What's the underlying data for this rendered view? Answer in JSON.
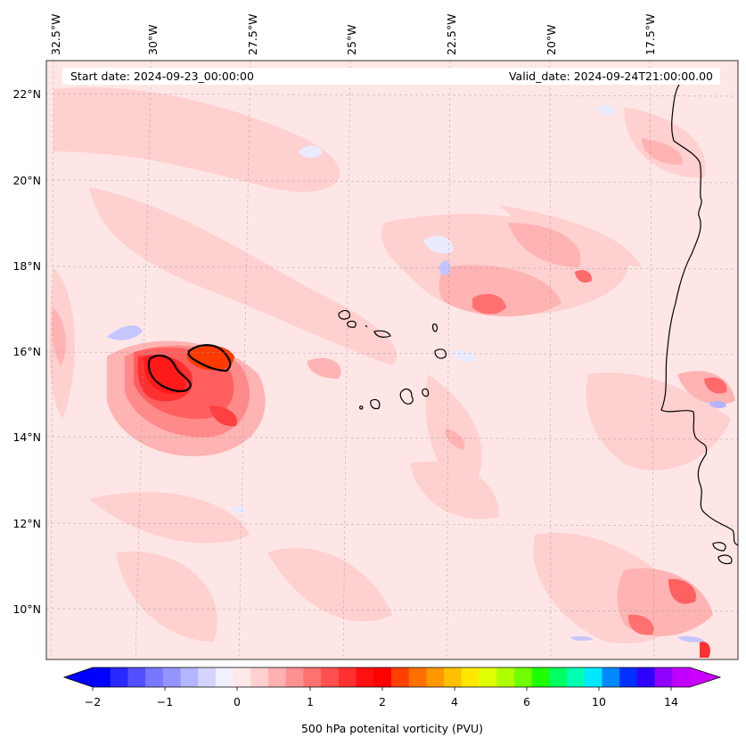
{
  "info": {
    "start_date": "Start date: 2024-09-23_00:00:00",
    "valid_date": "Valid_date: 2024-09-24T21:00:00.00"
  },
  "axes": {
    "lon_labels": [
      "32.5°W",
      "30°W",
      "27.5°W",
      "25°W",
      "22.5°W",
      "20°W",
      "17.5°W"
    ],
    "lat_labels": [
      "22°N",
      "20°N",
      "18°N",
      "16°N",
      "14°N",
      "12°N",
      "10°N"
    ]
  },
  "colorbar": {
    "label": "500 hPa potenital vorticity (PVU)",
    "tick_labels": [
      "−2",
      "−1",
      "0",
      "1",
      "2",
      "4",
      "6",
      "10",
      "14"
    ],
    "colors": [
      "#0000ff",
      "#2828ff",
      "#5050ff",
      "#7878ff",
      "#9494ff",
      "#b4b4ff",
      "#d4d4ff",
      "#f0f0ff",
      "#ffe8e8",
      "#ffd0d0",
      "#ffb0b0",
      "#ff9090",
      "#ff7070",
      "#ff5050",
      "#ff3030",
      "#ff1010",
      "#ff0000",
      "#ff4000",
      "#ff7000",
      "#ff9800",
      "#ffc000",
      "#ffe800",
      "#e0ff00",
      "#b0ff00",
      "#70ff00",
      "#20ff00",
      "#00ff60",
      "#00ffb0",
      "#00e8ff",
      "#0088ff",
      "#0030ff",
      "#3000ff",
      "#9000ff",
      "#c000ff"
    ],
    "extend_min_color": "#0000ff",
    "extend_max_color": "#cc00ff"
  }
}
